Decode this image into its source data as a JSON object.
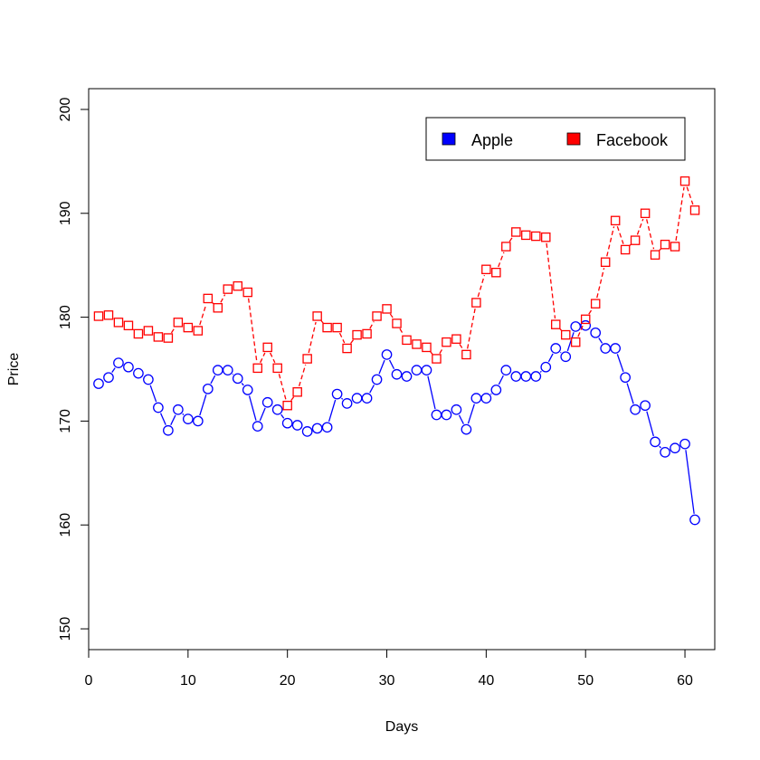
{
  "chart_data": {
    "type": "line",
    "title": "",
    "xlabel": "Days",
    "ylabel": "Price",
    "xlim": [
      0,
      63
    ],
    "ylim": [
      148,
      202
    ],
    "xticks": [
      0,
      10,
      20,
      30,
      40,
      50,
      60
    ],
    "yticks": [
      150,
      160,
      170,
      180,
      190,
      200
    ],
    "grid": false,
    "legend": {
      "placement": "top-right",
      "entries": [
        "Apple",
        "Facebook"
      ]
    },
    "x": [
      1,
      2,
      3,
      4,
      5,
      6,
      7,
      8,
      9,
      10,
      11,
      12,
      13,
      14,
      15,
      16,
      17,
      18,
      19,
      20,
      21,
      22,
      23,
      24,
      25,
      26,
      27,
      28,
      29,
      30,
      31,
      32,
      33,
      34,
      35,
      36,
      37,
      38,
      39,
      40,
      41,
      42,
      43,
      44,
      45,
      46,
      47,
      48,
      49,
      50,
      51,
      52,
      53,
      54,
      55,
      56,
      57,
      58,
      59,
      60,
      61
    ],
    "series": [
      {
        "name": "Apple",
        "color": "#0000ff",
        "marker": "circle",
        "line": "solid",
        "values": [
          173.6,
          174.2,
          175.6,
          175.2,
          174.6,
          174.0,
          171.3,
          169.1,
          171.1,
          170.2,
          170.0,
          173.1,
          174.9,
          174.9,
          174.1,
          173.0,
          169.5,
          171.8,
          171.1,
          169.8,
          169.6,
          169.0,
          169.3,
          169.4,
          172.6,
          171.7,
          172.2,
          172.2,
          174.0,
          176.4,
          174.5,
          174.3,
          174.9,
          174.9,
          170.6,
          170.6,
          171.1,
          169.2,
          172.2,
          172.2,
          173.0,
          174.9,
          174.3,
          174.3,
          174.3,
          175.2,
          177.0,
          176.2,
          179.1,
          179.2,
          178.5,
          177.0,
          177.0,
          174.2,
          171.1,
          171.5,
          168.0,
          167.0,
          167.4,
          167.8,
          160.5
        ]
      },
      {
        "name": "Facebook",
        "color": "#ff0000",
        "marker": "square",
        "line": "dashed",
        "values": [
          180.1,
          180.2,
          179.5,
          179.2,
          178.4,
          178.7,
          178.1,
          178.0,
          179.5,
          179.0,
          178.7,
          181.8,
          180.9,
          182.7,
          183.0,
          182.4,
          175.1,
          177.1,
          175.1,
          171.5,
          172.8,
          176.0,
          180.1,
          179.0,
          179.0,
          177.0,
          178.3,
          178.4,
          180.1,
          180.8,
          179.4,
          177.8,
          177.4,
          177.1,
          176.0,
          177.6,
          177.9,
          176.4,
          181.4,
          184.6,
          184.3,
          186.8,
          188.2,
          187.9,
          187.8,
          187.7,
          179.3,
          178.3,
          177.6,
          179.8,
          181.3,
          185.3,
          189.3,
          186.5,
          187.4,
          190.0,
          186.0,
          187.0,
          186.8,
          193.1,
          190.3
        ]
      }
    ]
  }
}
